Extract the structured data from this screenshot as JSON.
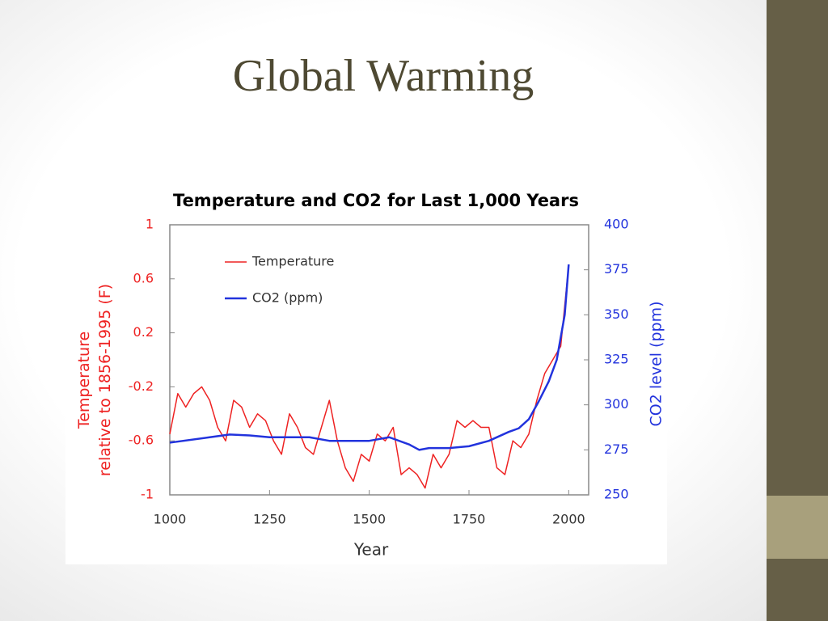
{
  "slide": {
    "title": "Global Warming"
  },
  "chart_data": {
    "type": "line",
    "title": "Temperature and CO2 for Last 1,000 Years",
    "xlabel": "Year",
    "ylabel": [
      "Temperature",
      "relative to 1856-1995 (F)"
    ],
    "y2label": "CO2 level (ppm)",
    "xlim": [
      1000,
      2050
    ],
    "xticks": [
      1000,
      1250,
      1500,
      1750,
      2000
    ],
    "ylim": [
      -1,
      1
    ],
    "yticks": [
      -1,
      -0.6,
      -0.2,
      0.2,
      0.6,
      1
    ],
    "y2lim": [
      250,
      400
    ],
    "y2ticks": [
      250,
      275,
      300,
      325,
      350,
      375,
      400
    ],
    "grid": false,
    "legend": "upper left",
    "series": [
      {
        "name": "Temperature",
        "color": "#ee2222",
        "x": [
          1000,
          1020,
          1040,
          1060,
          1080,
          1100,
          1120,
          1140,
          1160,
          1180,
          1200,
          1220,
          1240,
          1260,
          1280,
          1300,
          1320,
          1340,
          1360,
          1380,
          1400,
          1420,
          1440,
          1460,
          1480,
          1500,
          1520,
          1540,
          1560,
          1580,
          1600,
          1620,
          1640,
          1660,
          1680,
          1700,
          1720,
          1740,
          1760,
          1780,
          1800,
          1820,
          1840,
          1860,
          1880,
          1900,
          1920,
          1940,
          1960,
          1980,
          2000
        ],
        "values": [
          -0.55,
          -0.25,
          -0.35,
          -0.25,
          -0.2,
          -0.3,
          -0.5,
          -0.6,
          -0.3,
          -0.35,
          -0.5,
          -0.4,
          -0.45,
          -0.6,
          -0.7,
          -0.4,
          -0.5,
          -0.65,
          -0.7,
          -0.5,
          -0.3,
          -0.6,
          -0.8,
          -0.9,
          -0.7,
          -0.75,
          -0.55,
          -0.6,
          -0.5,
          -0.85,
          -0.8,
          -0.85,
          -0.95,
          -0.7,
          -0.8,
          -0.7,
          -0.45,
          -0.5,
          -0.45,
          -0.5,
          -0.5,
          -0.8,
          -0.85,
          -0.6,
          -0.65,
          -0.55,
          -0.3,
          -0.1,
          0.0,
          0.1,
          0.7
        ]
      },
      {
        "name": "CO2 (ppm)",
        "color": "#2233dd",
        "axis": "y2",
        "x": [
          1000,
          1100,
          1150,
          1200,
          1250,
          1300,
          1350,
          1400,
          1450,
          1500,
          1550,
          1600,
          1625,
          1650,
          1700,
          1750,
          1800,
          1850,
          1875,
          1900,
          1925,
          1950,
          1970,
          1990,
          2000
        ],
        "values": [
          279,
          282,
          283.5,
          283,
          282,
          282,
          282,
          280,
          280,
          280,
          282,
          278,
          275,
          276,
          276,
          277,
          280,
          285,
          287,
          292,
          302,
          313,
          325,
          350,
          378
        ]
      }
    ]
  }
}
